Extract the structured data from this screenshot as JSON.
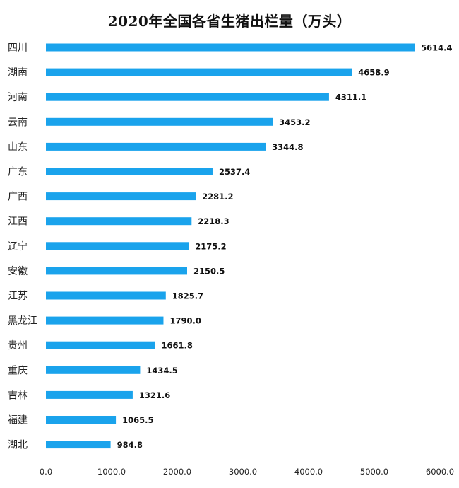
{
  "chart_data": {
    "type": "bar",
    "orientation": "horizontal",
    "title": "2020年全国各省生猪出栏量（万头）",
    "categories": [
      "四川",
      "湖南",
      "河南",
      "云南",
      "山东",
      "广东",
      "广西",
      "江西",
      "辽宁",
      "安徽",
      "江苏",
      "黑龙江",
      "贵州",
      "重庆",
      "吉林",
      "福建",
      "湖北"
    ],
    "values": [
      5614.4,
      4658.9,
      4311.1,
      3453.2,
      3344.8,
      2537.4,
      2281.2,
      2218.3,
      2175.2,
      2150.5,
      1825.7,
      1790.0,
      1661.8,
      1434.5,
      1321.6,
      1065.5,
      984.8
    ],
    "value_labels": [
      "5614.4",
      "4658.9",
      "4311.1",
      "3453.2",
      "3344.8",
      "2537.4",
      "2281.2",
      "2218.3",
      "2175.2",
      "2150.5",
      "1825.7",
      "1790.0",
      "1661.8",
      "1434.5",
      "1321.6",
      "1065.5",
      "984.8"
    ],
    "xlim": [
      0,
      6000
    ],
    "ticks": [
      0,
      1000,
      2000,
      3000,
      4000,
      5000,
      6000
    ],
    "tick_labels": [
      "0.0",
      "1000.0",
      "2000.0",
      "3000.0",
      "4000.0",
      "5000.0",
      "6000.0"
    ],
    "bar_color": "#1aa3ec",
    "grid": false,
    "legend": "none"
  }
}
